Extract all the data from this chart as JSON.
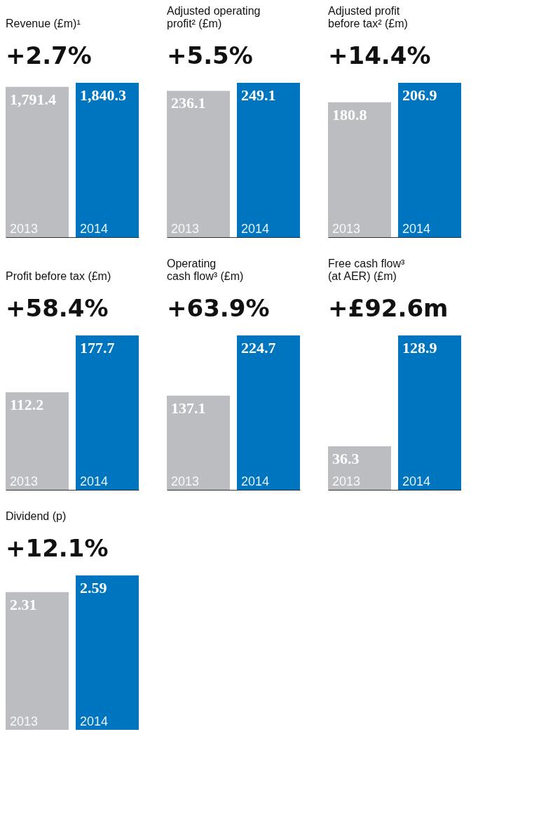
{
  "chart_data": [
    {
      "type": "bar",
      "title": "Revenue (£m)¹",
      "subtitle": "+2.7%",
      "categories": [
        "2013",
        "2014"
      ],
      "values": [
        1791.4,
        1840.3
      ],
      "colors": [
        "#bcbdc1",
        "#0075bf"
      ],
      "value_labels": [
        "1,791.4",
        "1,840.3"
      ]
    },
    {
      "type": "bar",
      "title": "Adjusted operating\nprofit² (£m)",
      "subtitle": "+5.5%",
      "categories": [
        "2013",
        "2014"
      ],
      "values": [
        236.1,
        249.1
      ],
      "colors": [
        "#bcbdc1",
        "#0075bf"
      ],
      "data_labels": true
    },
    {
      "type": "bar",
      "title": "Adjusted profit\nbefore tax² (£m)",
      "subtitle": "+14.4%",
      "categories": [
        "2013",
        "2014"
      ],
      "values": [
        180.8,
        206.9
      ],
      "colors": [
        "#bcbdc1",
        "#0075bf"
      ],
      "data_labels": true
    },
    {
      "type": "bar",
      "title": "Profit before tax (£m)",
      "subtitle": "+58.4%",
      "categories": [
        "2013",
        "2014"
      ],
      "values": [
        112.2,
        177.7
      ],
      "colors": [
        "#bcbdc1",
        "#0075bf"
      ],
      "data_labels": true
    },
    {
      "type": "bar",
      "title": "Operating\ncash flow³ (£m)",
      "subtitle": "+63.9%",
      "categories": [
        "2013",
        "2014"
      ],
      "values": [
        137.1,
        224.7
      ],
      "colors": [
        "#bcbdc1",
        "#0075bf"
      ],
      "data_labels": true
    },
    {
      "type": "bar",
      "title": "Free cash flow³\n(at AER) (£m)",
      "subtitle": "+£92.6m",
      "categories": [
        "2013",
        "2014"
      ],
      "values": [
        36.3,
        128.9
      ],
      "colors": [
        "#bcbdc1",
        "#0075bf"
      ],
      "data_labels": true
    },
    {
      "type": "bar",
      "title": "Dividend (p)",
      "subtitle": "+12.1%",
      "categories": [
        "2013",
        "2014"
      ],
      "values": [
        2.31,
        2.59
      ],
      "colors": [
        "#bcbdc1",
        "#0075bf"
      ],
      "data_labels": true
    }
  ]
}
